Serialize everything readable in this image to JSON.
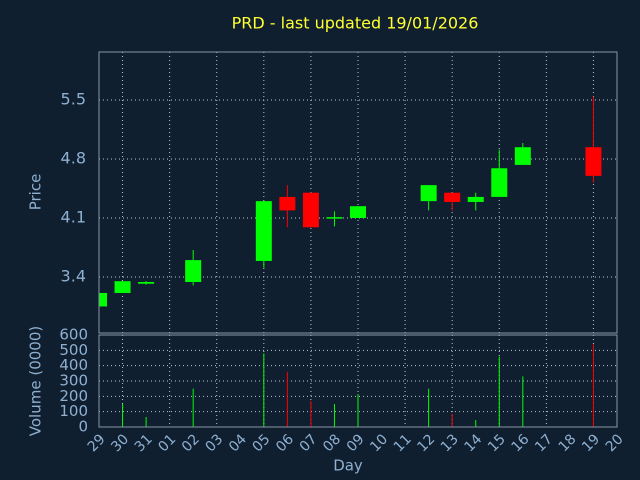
{
  "chart_data": {
    "type": "candlestick",
    "title": "PRD - last updated 19/01/2026",
    "xlabel": "Day",
    "ylabel": "Price",
    "y2label": "Volume (0000)",
    "categories": [
      "29",
      "30",
      "31",
      "01",
      "02",
      "03",
      "04",
      "05",
      "06",
      "07",
      "08",
      "09",
      "10",
      "11",
      "12",
      "13",
      "14",
      "15",
      "16",
      "17",
      "18",
      "19",
      "20"
    ],
    "x": [
      "29",
      "30",
      "31",
      "02",
      "05",
      "06",
      "07",
      "08",
      "09",
      "12",
      "13",
      "14",
      "15",
      "16",
      "19"
    ],
    "open": [
      3.05,
      3.21,
      3.32,
      3.34,
      3.59,
      4.35,
      4.4,
      4.1,
      4.1,
      4.3,
      4.4,
      4.29,
      4.35,
      4.73,
      4.94
    ],
    "high": [
      3.21,
      3.35,
      3.35,
      3.72,
      4.3,
      4.49,
      4.4,
      4.18,
      4.24,
      4.49,
      4.4,
      4.4,
      4.91,
      4.99,
      5.54
    ],
    "low": [
      3.05,
      3.21,
      3.31,
      3.3,
      3.51,
      3.99,
      3.99,
      4.0,
      4.1,
      4.19,
      4.19,
      4.19,
      4.35,
      4.73,
      4.52
    ],
    "close": [
      3.21,
      3.35,
      3.34,
      3.6,
      4.3,
      4.19,
      3.99,
      4.11,
      4.24,
      4.49,
      4.29,
      4.35,
      4.69,
      4.94,
      4.6
    ],
    "volume": [
      null,
      150,
      65,
      250,
      480,
      360,
      170,
      150,
      215,
      250,
      85,
      45,
      460,
      330,
      540
    ],
    "up_color": "#00ff00",
    "down_color": "#ff0000",
    "ylim": [
      2.735,
      6.07
    ],
    "yticks": [
      3.4,
      4.1,
      4.8,
      5.5
    ],
    "y2lim": [
      0,
      600
    ],
    "y2ticks": [
      0,
      100,
      200,
      300,
      400,
      500,
      600
    ],
    "grid": true
  }
}
